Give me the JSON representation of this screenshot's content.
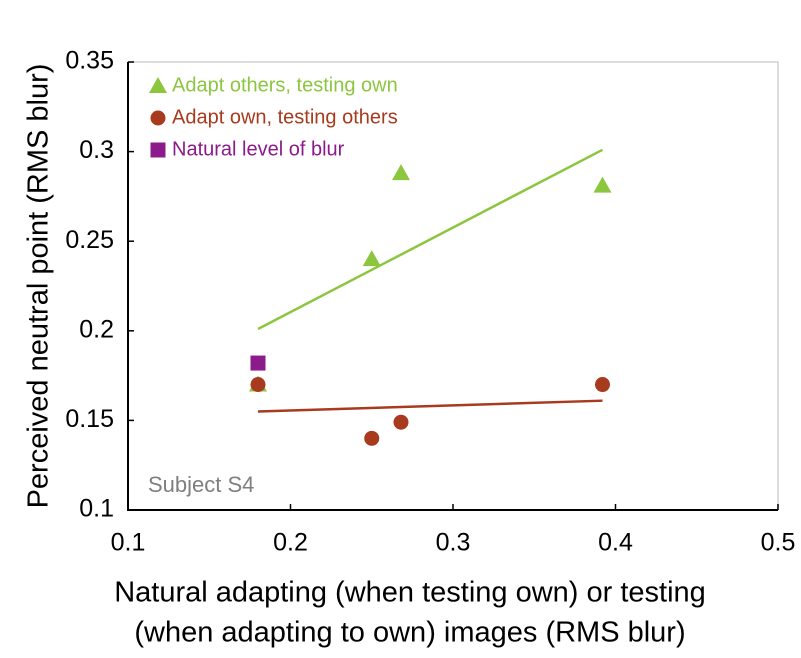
{
  "chart_data": {
    "type": "scatter",
    "y_label": "Perceived neutral point (RMS blur)",
    "x_label": [
      "Natural adapting (when testing own) or testing",
      "(when adapting to own) images (RMS blur)"
    ],
    "annotation": "Subject S4",
    "xlim": [
      0.1,
      0.5
    ],
    "xticks": [
      0.1,
      0.2,
      0.3,
      0.4,
      0.5
    ],
    "ylim": [
      0.1,
      0.35
    ],
    "yticks": [
      0.1,
      0.15,
      0.2,
      0.25,
      0.3,
      0.35
    ],
    "legend": "top-left",
    "series": [
      {
        "name": "Adapt others, testing own",
        "color": "#8cc63f",
        "marker": "triangle",
        "x": [
          0.18,
          0.25,
          0.268,
          0.392
        ],
        "values": [
          0.17,
          0.24,
          0.288,
          0.281
        ],
        "fit": {
          "x": [
            0.18,
            0.392
          ],
          "values": [
            0.201,
            0.301
          ]
        }
      },
      {
        "name": "Adapt own, testing others",
        "color": "#a83a1e",
        "marker": "circle",
        "x": [
          0.18,
          0.25,
          0.268,
          0.392
        ],
        "values": [
          0.17,
          0.14,
          0.149,
          0.17
        ],
        "fit": {
          "x": [
            0.18,
            0.392
          ],
          "values": [
            0.155,
            0.161
          ]
        }
      },
      {
        "name": "Natural level of blur",
        "color": "#8b1a8b",
        "marker": "square",
        "x": [
          0.18
        ],
        "values": [
          0.182
        ]
      }
    ]
  }
}
